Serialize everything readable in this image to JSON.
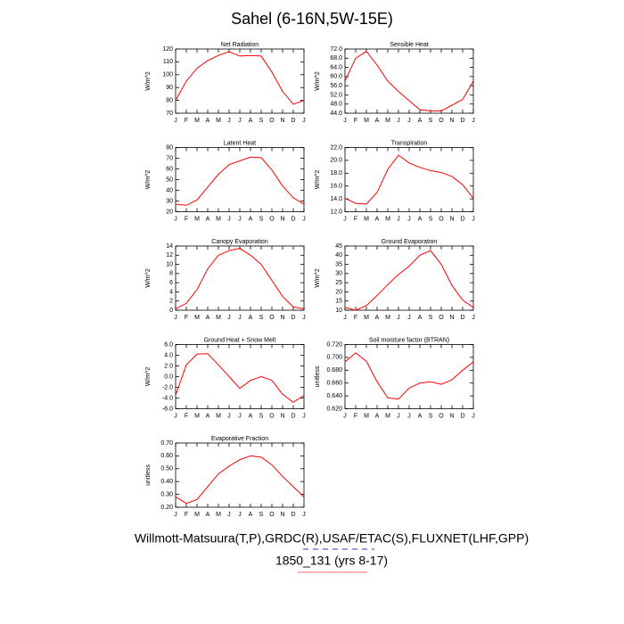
{
  "title": "Sahel (6-16N,5W-15E)",
  "caption": "Willmott-Matsuura(T,P),GRDC(R),USAF/ETAC(S),FLUXNET(LHF,GPP)",
  "subcaption": "1850_131 (yrs 8-17)",
  "chart_data": [
    {
      "type": "line",
      "title": "Net Radiation",
      "y_label": "W/m^2",
      "categories": [
        "J",
        "F",
        "M",
        "A",
        "M",
        "J",
        "J",
        "A",
        "S",
        "O",
        "N",
        "D",
        "J"
      ],
      "series": [
        {
          "color": "#ff0000",
          "values": [
            80,
            95,
            105,
            111,
            115,
            118,
            114.5,
            115,
            114.5,
            102,
            87,
            77,
            80
          ]
        }
      ],
      "ylim": [
        70,
        120
      ],
      "yticks": [
        70,
        80,
        90,
        100,
        110,
        120
      ]
    },
    {
      "type": "line",
      "title": "Sensible Heat",
      "y_label": "W/m^2",
      "categories": [
        "J",
        "F",
        "M",
        "A",
        "M",
        "J",
        "J",
        "A",
        "S",
        "O",
        "N",
        "D",
        "J"
      ],
      "series": [
        {
          "color": "#ff0000",
          "values": [
            58,
            68,
            71,
            65,
            58,
            53.5,
            49.5,
            45.5,
            45,
            45,
            47.5,
            50,
            58
          ]
        }
      ],
      "ylim": [
        44,
        72
      ],
      "yticks": [
        {
          "value": 44,
          "label": "44.0"
        },
        {
          "value": 48,
          "label": "48.0"
        },
        {
          "value": 52,
          "label": "52.0"
        },
        {
          "value": 56,
          "label": "56.0"
        },
        {
          "value": 60,
          "label": "60.0"
        },
        {
          "value": 64,
          "label": "64.0"
        },
        {
          "value": 68,
          "label": "68.0"
        },
        {
          "value": 72,
          "label": "72.0"
        }
      ]
    },
    {
      "type": "line",
      "title": "Latent Heat",
      "y_label": "W/m^2",
      "categories": [
        "J",
        "F",
        "M",
        "A",
        "M",
        "J",
        "J",
        "A",
        "S",
        "O",
        "N",
        "D",
        "J"
      ],
      "series": [
        {
          "color": "#ff0000",
          "values": [
            27,
            26,
            31,
            43,
            55,
            64,
            67.5,
            71,
            70.5,
            59,
            44,
            33,
            27
          ]
        }
      ],
      "ylim": [
        20,
        80
      ],
      "yticks": [
        20,
        30,
        40,
        50,
        60,
        70,
        80
      ]
    },
    {
      "type": "line",
      "title": "Transpiration",
      "y_label": "W/m^2",
      "categories": [
        "J",
        "F",
        "M",
        "A",
        "M",
        "J",
        "J",
        "A",
        "S",
        "O",
        "N",
        "D",
        "J"
      ],
      "series": [
        {
          "color": "#ff0000",
          "values": [
            14.1,
            13.3,
            13.2,
            15,
            18.6,
            20.8,
            19.6,
            18.9,
            18.4,
            18.1,
            17.5,
            16.2,
            14.1
          ]
        }
      ],
      "ylim": [
        12,
        22
      ],
      "yticks": [
        {
          "value": 12,
          "label": "12.0"
        },
        {
          "value": 14,
          "label": "14.0"
        },
        {
          "value": 16,
          "label": "16.0"
        },
        {
          "value": 18,
          "label": "18.0"
        },
        {
          "value": 20,
          "label": "20.0"
        },
        {
          "value": 22,
          "label": "22.0"
        }
      ]
    },
    {
      "type": "line",
      "title": "Canopy Evaporation",
      "y_label": "W/m^2",
      "categories": [
        "J",
        "F",
        "M",
        "A",
        "M",
        "J",
        "J",
        "A",
        "S",
        "O",
        "N",
        "D",
        "J"
      ],
      "series": [
        {
          "color": "#ff0000",
          "values": [
            0.3,
            1.5,
            4.5,
            9,
            12,
            13,
            13.5,
            12,
            10,
            6.5,
            3,
            0.7,
            0.3
          ]
        }
      ],
      "ylim": [
        0,
        14
      ],
      "yticks": [
        0,
        2,
        4,
        6,
        8,
        10,
        12,
        14
      ]
    },
    {
      "type": "line",
      "title": "Ground Evaporation",
      "y_label": "W/m^2",
      "categories": [
        "J",
        "F",
        "M",
        "A",
        "M",
        "J",
        "J",
        "A",
        "S",
        "O",
        "N",
        "D",
        "J"
      ],
      "series": [
        {
          "color": "#ff0000",
          "values": [
            11.5,
            10,
            12.5,
            18,
            24,
            29.5,
            34,
            40,
            42.5,
            35,
            23.5,
            15.5,
            11.5
          ]
        }
      ],
      "ylim": [
        10,
        45
      ],
      "yticks": [
        10,
        15,
        20,
        25,
        30,
        35,
        40,
        45
      ]
    },
    {
      "type": "line",
      "title": "Ground Heat + Snow Melt",
      "y_label": "W/m^2",
      "categories": [
        "J",
        "F",
        "M",
        "A",
        "M",
        "J",
        "J",
        "A",
        "S",
        "O",
        "N",
        "D",
        "J"
      ],
      "series": [
        {
          "color": "#ff0000",
          "values": [
            -3.5,
            2.2,
            4.2,
            4.3,
            2.2,
            0,
            -2.2,
            -0.7,
            0,
            -0.7,
            -3.3,
            -4.8,
            -3.5
          ]
        }
      ],
      "ylim": [
        -6,
        6
      ],
      "yticks": [
        {
          "value": -6,
          "label": "-6.0"
        },
        {
          "value": -4,
          "label": "-4.0"
        },
        {
          "value": -2,
          "label": "-2.0"
        },
        {
          "value": 0,
          "label": "0.0"
        },
        {
          "value": 2,
          "label": "2.0"
        },
        {
          "value": 4,
          "label": "4.0"
        },
        {
          "value": 6,
          "label": "6.0"
        }
      ]
    },
    {
      "type": "line",
      "title": "Soil moisture factor (BTRAN)",
      "y_label": "unitless",
      "categories": [
        "J",
        "F",
        "M",
        "A",
        "M",
        "J",
        "J",
        "A",
        "S",
        "O",
        "N",
        "D",
        "J"
      ],
      "series": [
        {
          "color": "#ff0000",
          "values": [
            0.693,
            0.707,
            0.694,
            0.662,
            0.637,
            0.635,
            0.652,
            0.66,
            0.662,
            0.658,
            0.665,
            0.68,
            0.693
          ]
        }
      ],
      "ylim": [
        0.62,
        0.72
      ],
      "yticks": [
        {
          "value": 0.62,
          "label": "0.620"
        },
        {
          "value": 0.64,
          "label": "0.640"
        },
        {
          "value": 0.66,
          "label": "0.660"
        },
        {
          "value": 0.68,
          "label": "0.680"
        },
        {
          "value": 0.7,
          "label": "0.700"
        },
        {
          "value": 0.72,
          "label": "0.720"
        }
      ]
    },
    {
      "type": "line",
      "title": "Evaporative Fraction",
      "y_label": "unitless",
      "categories": [
        "J",
        "F",
        "M",
        "A",
        "M",
        "J",
        "J",
        "A",
        "S",
        "O",
        "N",
        "D",
        "J"
      ],
      "series": [
        {
          "color": "#ff0000",
          "values": [
            0.28,
            0.23,
            0.26,
            0.36,
            0.46,
            0.52,
            0.57,
            0.6,
            0.59,
            0.53,
            0.44,
            0.36,
            0.28
          ]
        }
      ],
      "ylim": [
        0.2,
        0.7
      ],
      "yticks": [
        {
          "value": 0.2,
          "label": "0.20"
        },
        {
          "value": 0.3,
          "label": "0.30"
        },
        {
          "value": 0.4,
          "label": "0.40"
        },
        {
          "value": 0.5,
          "label": "0.50"
        },
        {
          "value": 0.6,
          "label": "0.60"
        },
        {
          "value": 0.7,
          "label": "0.70"
        }
      ]
    }
  ]
}
